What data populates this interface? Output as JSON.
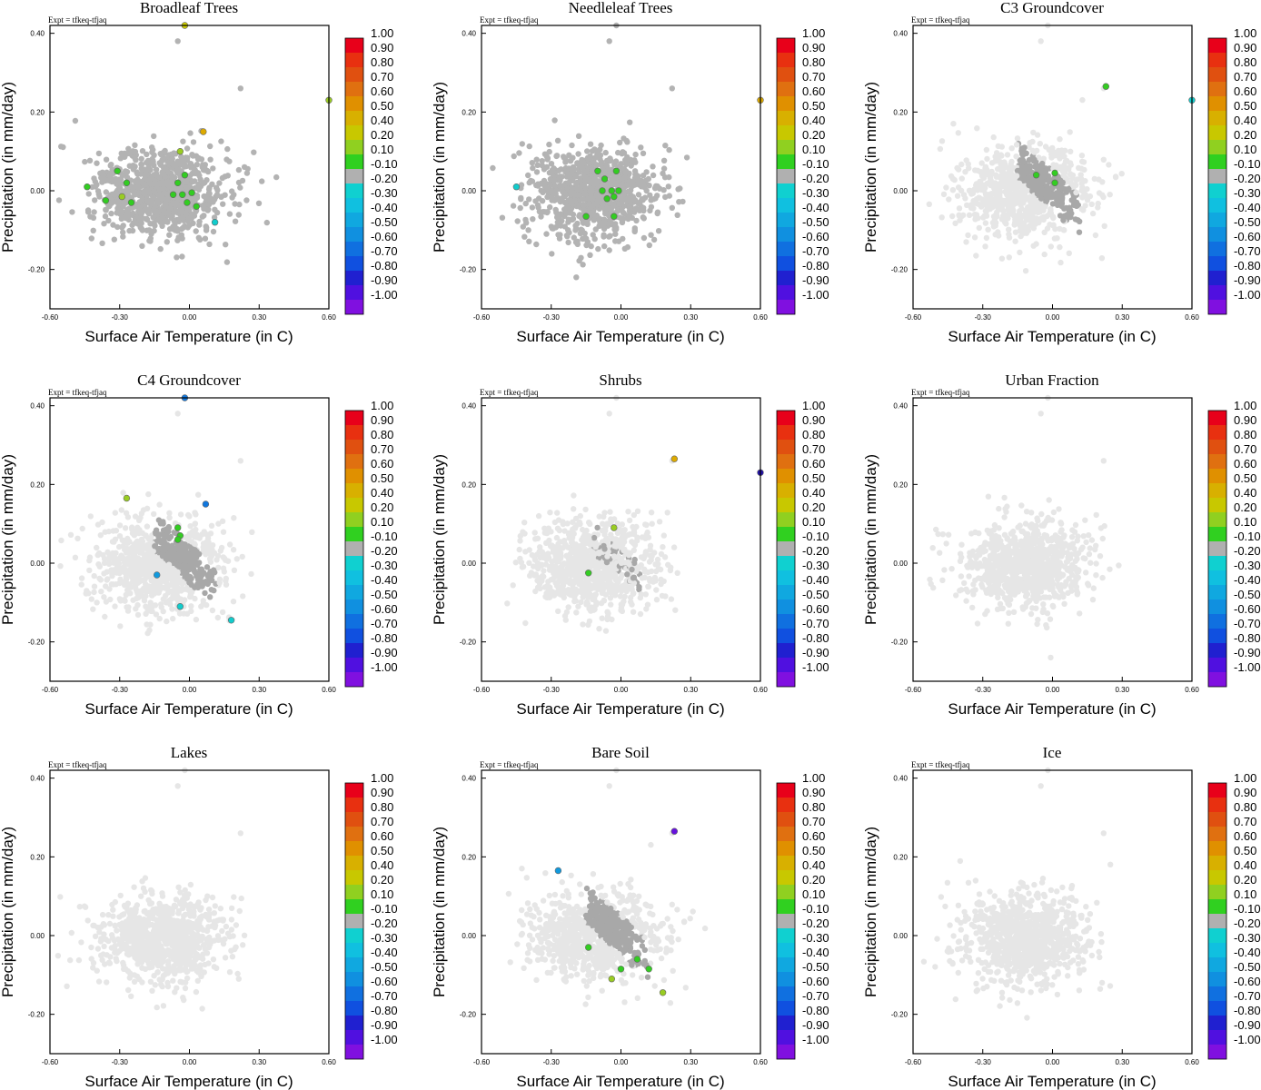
{
  "chart_data": [
    {
      "type": "scatter",
      "title": "Broadleaf Trees",
      "experiment": "Expt = tfkeq-tfjaq",
      "xlabel": "Surface Air Temperature (in C)",
      "ylabel": "Precipitation (in mm/day)",
      "xlim": [
        -0.6,
        0.6
      ],
      "ylim": [
        -0.3,
        0.42
      ],
      "xticks": [
        "-0.60",
        "-0.30",
        "0.00",
        "0.30",
        "0.60"
      ],
      "yticks": [
        "-0.20",
        "0.00",
        "0.20",
        "0.40"
      ],
      "background_cloud": "dark",
      "seed": 11,
      "highlight": [
        {
          "x": -0.44,
          "y": 0.01,
          "c": "#33cc22"
        },
        {
          "x": -0.31,
          "y": 0.05,
          "c": "#33cc22"
        },
        {
          "x": -0.27,
          "y": 0.02,
          "c": "#33cc22"
        },
        {
          "x": -0.29,
          "y": -0.015,
          "c": "#99cc22"
        },
        {
          "x": -0.36,
          "y": -0.025,
          "c": "#33cc22"
        },
        {
          "x": -0.25,
          "y": -0.03,
          "c": "#33cc22"
        },
        {
          "x": -0.07,
          "y": -0.01,
          "c": "#33cc22"
        },
        {
          "x": -0.05,
          "y": 0.02,
          "c": "#33cc22"
        },
        {
          "x": -0.02,
          "y": 0.04,
          "c": "#33cc22"
        },
        {
          "x": -0.03,
          "y": -0.01,
          "c": "#33cc22"
        },
        {
          "x": 0.01,
          "y": -0.005,
          "c": "#33cc22"
        },
        {
          "x": 0.03,
          "y": -0.04,
          "c": "#33cc22"
        },
        {
          "x": -0.01,
          "y": -0.03,
          "c": "#33cc22"
        },
        {
          "x": -0.04,
          "y": 0.1,
          "c": "#99cc22"
        },
        {
          "x": 0.06,
          "y": 0.15,
          "c": "#ddaa00"
        },
        {
          "x": -0.02,
          "y": 0.42,
          "c": "#cccc00"
        },
        {
          "x": 0.6,
          "y": 0.23,
          "c": "#99cc22"
        },
        {
          "x": 0.11,
          "y": -0.08,
          "c": "#11cccc"
        }
      ]
    },
    {
      "type": "scatter",
      "title": "Needleleaf Trees",
      "experiment": "Expt = tfkeq-tfjaq",
      "xlabel": "Surface Air Temperature (in C)",
      "ylabel": "Precipitation (in mm/day)",
      "xlim": [
        -0.6,
        0.6
      ],
      "ylim": [
        -0.3,
        0.42
      ],
      "xticks": [
        "-0.60",
        "-0.30",
        "0.00",
        "0.30",
        "0.60"
      ],
      "yticks": [
        "-0.20",
        "0.00",
        "0.20",
        "0.40"
      ],
      "background_cloud": "dark",
      "seed": 23,
      "highlight": [
        {
          "x": -0.45,
          "y": 0.01,
          "c": "#11cccc"
        },
        {
          "x": -0.07,
          "y": 0.03,
          "c": "#33cc22"
        },
        {
          "x": -0.02,
          "y": 0.05,
          "c": "#33cc22"
        },
        {
          "x": -0.08,
          "y": 0.0,
          "c": "#33cc22"
        },
        {
          "x": -0.06,
          "y": -0.02,
          "c": "#33cc22"
        },
        {
          "x": -0.04,
          "y": 0.0,
          "c": "#33cc22"
        },
        {
          "x": -0.01,
          "y": 0.0,
          "c": "#33cc22"
        },
        {
          "x": -0.03,
          "y": -0.015,
          "c": "#33cc22"
        },
        {
          "x": -0.15,
          "y": -0.065,
          "c": "#33cc22"
        },
        {
          "x": -0.03,
          "y": -0.065,
          "c": "#33cc22"
        },
        {
          "x": -0.1,
          "y": 0.05,
          "c": "#33cc22"
        },
        {
          "x": 0.6,
          "y": 0.23,
          "c": "#ddaa00"
        }
      ]
    },
    {
      "type": "scatter",
      "title": "C3 Groundcover",
      "experiment": "Expt = tfkeq-tfjaq",
      "xlabel": "Surface Air Temperature (in C)",
      "ylabel": "Precipitation (in mm/day)",
      "xlim": [
        -0.6,
        0.6
      ],
      "ylim": [
        -0.3,
        0.42
      ],
      "xticks": [
        "-0.60",
        "-0.30",
        "0.00",
        "0.30",
        "0.60"
      ],
      "yticks": [
        "-0.20",
        "0.00",
        "0.20",
        "0.40"
      ],
      "background_cloud": "light-band",
      "seed": 37,
      "highlight": [
        {
          "x": -0.07,
          "y": 0.04,
          "c": "#33cc22"
        },
        {
          "x": 0.01,
          "y": 0.045,
          "c": "#33cc22"
        },
        {
          "x": 0.01,
          "y": 0.02,
          "c": "#33cc22"
        },
        {
          "x": 0.23,
          "y": 0.265,
          "c": "#33cc22"
        },
        {
          "x": 0.6,
          "y": 0.23,
          "c": "#11cccc"
        }
      ]
    },
    {
      "type": "scatter",
      "title": "C4 Groundcover",
      "experiment": "Expt = tfkeq-tfjaq",
      "xlabel": "Surface Air Temperature (in C)",
      "ylabel": "Precipitation (in mm/day)",
      "xlim": [
        -0.6,
        0.6
      ],
      "ylim": [
        -0.3,
        0.42
      ],
      "xticks": [
        "-0.60",
        "-0.30",
        "0.00",
        "0.30",
        "0.60"
      ],
      "yticks": [
        "-0.20",
        "0.00",
        "0.20",
        "0.40"
      ],
      "background_cloud": "light-band",
      "seed": 41,
      "highlight": [
        {
          "x": -0.27,
          "y": 0.165,
          "c": "#99cc22"
        },
        {
          "x": -0.05,
          "y": 0.09,
          "c": "#33cc22"
        },
        {
          "x": -0.04,
          "y": 0.07,
          "c": "#33cc22"
        },
        {
          "x": -0.05,
          "y": 0.06,
          "c": "#33cc22"
        },
        {
          "x": -0.14,
          "y": -0.03,
          "c": "#1199dd"
        },
        {
          "x": -0.02,
          "y": 0.42,
          "c": "#1177dd"
        },
        {
          "x": 0.07,
          "y": 0.15,
          "c": "#1177dd"
        },
        {
          "x": -0.04,
          "y": -0.11,
          "c": "#11cccc"
        },
        {
          "x": 0.18,
          "y": -0.145,
          "c": "#11cccc"
        }
      ]
    },
    {
      "type": "scatter",
      "title": "Shrubs",
      "experiment": "Expt = tfkeq-tfjaq",
      "xlabel": "Surface Air Temperature (in C)",
      "ylabel": "Precipitation (in mm/day)",
      "xlim": [
        -0.6,
        0.6
      ],
      "ylim": [
        -0.3,
        0.42
      ],
      "xticks": [
        "-0.60",
        "-0.30",
        "0.00",
        "0.30",
        "0.60"
      ],
      "yticks": [
        "-0.20",
        "0.00",
        "0.20",
        "0.40"
      ],
      "background_cloud": "light-mid",
      "seed": 53,
      "highlight": [
        {
          "x": -0.03,
          "y": 0.09,
          "c": "#99cc22"
        },
        {
          "x": -0.14,
          "y": -0.025,
          "c": "#33cc22"
        },
        {
          "x": 0.23,
          "y": 0.265,
          "c": "#ddaa00"
        },
        {
          "x": 0.6,
          "y": 0.23,
          "c": "#2211aa"
        }
      ]
    },
    {
      "type": "scatter",
      "title": "Urban Fraction",
      "experiment": "Expt = tfkeq-tfjaq",
      "xlabel": "Surface Air Temperature (in C)",
      "ylabel": "Precipitation (in mm/day)",
      "xlim": [
        -0.6,
        0.6
      ],
      "ylim": [
        -0.3,
        0.42
      ],
      "xticks": [
        "-0.60",
        "-0.30",
        "0.00",
        "0.30",
        "0.60"
      ],
      "yticks": [
        "-0.20",
        "0.00",
        "0.20",
        "0.40"
      ],
      "background_cloud": "light",
      "seed": 67,
      "highlight": []
    },
    {
      "type": "scatter",
      "title": "Lakes",
      "experiment": "Expt = tfkeq-tfjaq",
      "xlabel": "Surface Air Temperature (in C)",
      "ylabel": "Precipitation (in mm/day)",
      "xlim": [
        -0.6,
        0.6
      ],
      "ylim": [
        -0.3,
        0.42
      ],
      "xticks": [
        "-0.60",
        "-0.30",
        "0.00",
        "0.30",
        "0.60"
      ],
      "yticks": [
        "-0.20",
        "0.00",
        "0.20",
        "0.40"
      ],
      "background_cloud": "light",
      "seed": 71,
      "highlight": []
    },
    {
      "type": "scatter",
      "title": "Bare Soil",
      "experiment": "Expt = tfkeq-tfjaq",
      "xlabel": "Surface Air Temperature (in C)",
      "ylabel": "Precipitation (in mm/day)",
      "xlim": [
        -0.6,
        0.6
      ],
      "ylim": [
        -0.3,
        0.42
      ],
      "xticks": [
        "-0.60",
        "-0.30",
        "0.00",
        "0.30",
        "0.60"
      ],
      "yticks": [
        "-0.20",
        "0.00",
        "0.20",
        "0.40"
      ],
      "background_cloud": "light-band2",
      "seed": 83,
      "highlight": [
        {
          "x": -0.27,
          "y": 0.165,
          "c": "#1199dd"
        },
        {
          "x": 0.23,
          "y": 0.265,
          "c": "#6611dd"
        },
        {
          "x": -0.14,
          "y": -0.03,
          "c": "#33cc22"
        },
        {
          "x": -0.04,
          "y": -0.11,
          "c": "#99cc22"
        },
        {
          "x": 0.07,
          "y": -0.06,
          "c": "#33cc22"
        },
        {
          "x": 0.12,
          "y": -0.085,
          "c": "#33cc22"
        },
        {
          "x": 0.0,
          "y": -0.085,
          "c": "#33cc22"
        },
        {
          "x": 0.18,
          "y": -0.145,
          "c": "#99cc22"
        }
      ]
    },
    {
      "type": "scatter",
      "title": "Ice",
      "experiment": "Expt = tfkeq-tfjaq",
      "xlabel": "Surface Air Temperature (in C)",
      "ylabel": "Precipitation (in mm/day)",
      "xlim": [
        -0.6,
        0.6
      ],
      "ylim": [
        -0.3,
        0.42
      ],
      "xticks": [
        "-0.60",
        "-0.30",
        "0.00",
        "0.30",
        "0.60"
      ],
      "yticks": [
        "-0.20",
        "0.00",
        "0.20",
        "0.40"
      ],
      "background_cloud": "light",
      "seed": 97,
      "highlight": []
    }
  ],
  "colorbar": {
    "labels": [
      "1.00",
      "0.90",
      "0.80",
      "0.70",
      "0.60",
      "0.50",
      "0.40",
      "0.20",
      "0.10",
      "-0.10",
      "-0.20",
      "-0.30",
      "-0.40",
      "-0.50",
      "-0.60",
      "-0.70",
      "-0.80",
      "-0.90",
      "-1.00"
    ],
    "colors": [
      "#e8001a",
      "#e83010",
      "#e05010",
      "#e07010",
      "#e09000",
      "#d8b000",
      "#c8c800",
      "#90d020",
      "#30d020",
      "#b0b0b0",
      "#10d0d0",
      "#10c0e0",
      "#10a8e0",
      "#1090e0",
      "#1070e0",
      "#1050e0",
      "#2020d0",
      "#5010e0",
      "#8010e0"
    ]
  },
  "colors": {
    "cloud_dark": "#b3b3b3",
    "cloud_mid": "#a8a8a8",
    "cloud_light": "#e6e6e6"
  }
}
